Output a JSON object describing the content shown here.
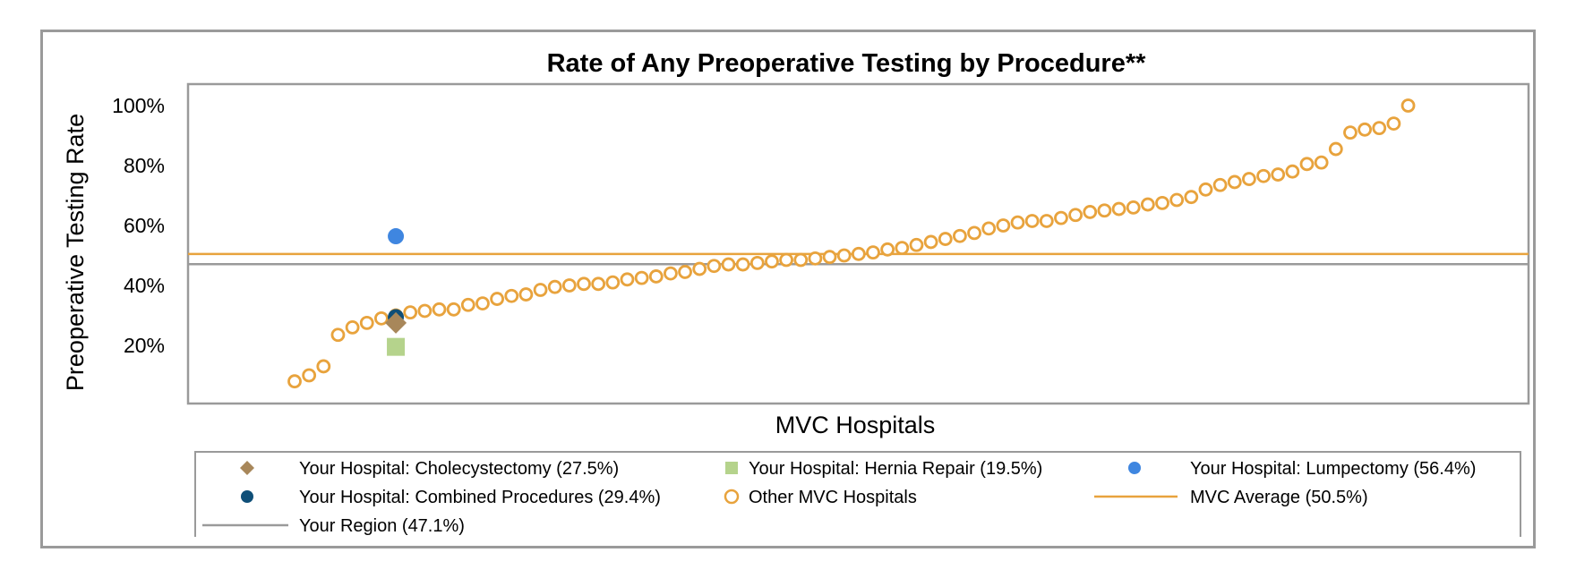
{
  "chart_data": {
    "type": "scatter",
    "title": "Rate of Any Preoperative Testing by Procedure**",
    "xlabel": "MVC Hospitals",
    "ylabel": "Preoperative Testing Rate",
    "y_ticks": [
      "20%",
      "40%",
      "60%",
      "80%",
      "100%"
    ],
    "y_tick_values": [
      20,
      40,
      60,
      80,
      100
    ],
    "ylim": [
      0,
      104
    ],
    "x_count": 78,
    "grid": false,
    "legend_position": "bottom",
    "colors": {
      "other": "#e8a33d",
      "cholecystectomy": "#a8875a",
      "hernia": "#b5d38c",
      "lumpectomy": "#3f86e0",
      "combined": "#0f4f78",
      "mvc_average": "#e8a33d",
      "region": "#9a9a9a"
    },
    "series": [
      {
        "name": "Other MVC Hospitals",
        "marker": "open-circle",
        "values": [
          8,
          10,
          13,
          23.5,
          26,
          27.5,
          29,
          30,
          31,
          31.5,
          32,
          32,
          33.5,
          34,
          35.5,
          36.5,
          37,
          38.5,
          39.5,
          40,
          40.5,
          40.5,
          41,
          42,
          42.5,
          43,
          44,
          44.5,
          45.5,
          46.5,
          47,
          47,
          47.5,
          48,
          48.5,
          48.5,
          49,
          49.5,
          50,
          50.5,
          51,
          52,
          52.5,
          53.5,
          54.5,
          55.5,
          56.5,
          57.5,
          59,
          60,
          61,
          61.5,
          61.5,
          62.5,
          63.5,
          64.5,
          65,
          65.5,
          66,
          67,
          67.5,
          68.5,
          69.5,
          72,
          73.5,
          74.5,
          75.5,
          76.5,
          77,
          78,
          80.5,
          81,
          85.5,
          91,
          92,
          92.5,
          94,
          100
        ]
      },
      {
        "name": "Your Hospital: Cholecystectomy (27.5%)",
        "marker": "diamond",
        "x": 7,
        "value": 27.5
      },
      {
        "name": "Your Hospital: Hernia Repair (19.5%)",
        "marker": "square",
        "x": 7,
        "value": 19.5
      },
      {
        "name": "Your Hospital: Lumpectomy (56.4%)",
        "marker": "circle",
        "x": 7,
        "value": 56.4
      },
      {
        "name": "Your Hospital: Combined Procedures (29.4%)",
        "marker": "circle",
        "x": 7,
        "value": 29.4
      }
    ],
    "reference_lines": [
      {
        "name": "MVC Average (50.5%)",
        "value": 50.5
      },
      {
        "name": "Your Region (47.1%)",
        "value": 47.1
      }
    ],
    "legend": [
      {
        "label": "Your Hospital: Cholecystectomy (27.5%)",
        "symbol": "diamond",
        "color": "#a8875a"
      },
      {
        "label": "Your Hospital: Hernia Repair (19.5%)",
        "symbol": "square",
        "color": "#b5d38c"
      },
      {
        "label": "Your Hospital: Lumpectomy (56.4%)",
        "symbol": "circle",
        "color": "#3f86e0"
      },
      {
        "label": "Your Hospital: Combined Procedures (29.4%)",
        "symbol": "circle",
        "color": "#0f4f78"
      },
      {
        "label": "Other MVC Hospitals",
        "symbol": "open-circle",
        "color": "#e8a33d"
      },
      {
        "label": "MVC Average (50.5%)",
        "symbol": "line",
        "color": "#e8a33d"
      },
      {
        "label": "Your Region (47.1%)",
        "symbol": "line",
        "color": "#9a9a9a"
      }
    ]
  }
}
